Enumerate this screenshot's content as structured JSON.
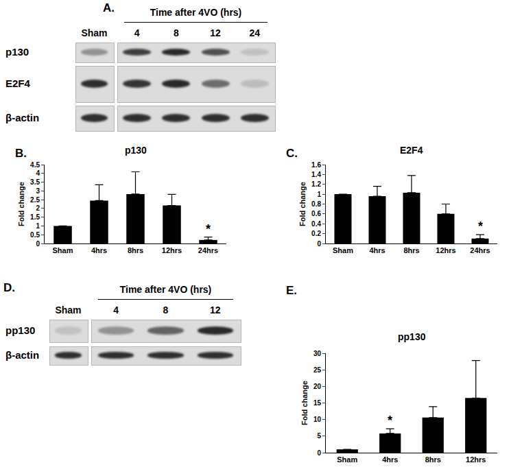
{
  "blots": [
    {
      "panel": "A.",
      "header": "Time after 4VO (hrs)",
      "lanes": [
        "Sham",
        "4",
        "8",
        "12",
        "24"
      ],
      "rows": [
        "p130",
        "E2F4",
        "β-actin"
      ]
    },
    {
      "panel": "D.",
      "header": "Time after 4VO (hrs)",
      "lanes": [
        "Sham",
        "4",
        "8",
        "12"
      ],
      "rows": [
        "pp130",
        "β-actin"
      ]
    }
  ],
  "chart_data": [
    {
      "panel": "B.",
      "type": "bar",
      "title": "p130",
      "ylabel": "Fold change",
      "categories": [
        "Sham",
        "4hrs",
        "8hrs",
        "12hrs",
        "24hrs"
      ],
      "values": [
        1,
        2.45,
        2.82,
        2.17,
        0.2
      ],
      "errors": [
        0,
        0.9,
        1.27,
        0.63,
        0.17
      ],
      "color": "#000000",
      "ylim": [
        0,
        4.5
      ],
      "yticks": [
        0,
        0.5,
        1,
        1.5,
        2,
        2.5,
        3,
        3.5,
        4,
        4.5
      ],
      "grid": false,
      "annotations": [
        {
          "category": "24hrs",
          "text": "*"
        }
      ]
    },
    {
      "panel": "C.",
      "type": "bar",
      "title": "E2F4",
      "ylabel": "Fold change",
      "categories": [
        "Sham",
        "4hrs",
        "8hrs",
        "12hrs",
        "24hrs"
      ],
      "values": [
        1,
        0.96,
        1.03,
        0.6,
        0.1
      ],
      "errors": [
        0,
        0.2,
        0.35,
        0.2,
        0.08
      ],
      "color": "#000000",
      "ylim": [
        0,
        1.6
      ],
      "yticks": [
        0,
        0.2,
        0.4,
        0.6,
        0.8,
        1,
        1.2,
        1.4,
        1.6
      ],
      "grid": false,
      "annotations": [
        {
          "category": "24hrs",
          "text": "*"
        }
      ]
    },
    {
      "panel": "E.",
      "type": "bar",
      "title": "pp130",
      "ylabel": "Fold change",
      "categories": [
        "Sham",
        "4hrs",
        "8hrs",
        "12hrs"
      ],
      "values": [
        1,
        5.8,
        10.6,
        16.5
      ],
      "errors": [
        0,
        1.4,
        3.3,
        11.3
      ],
      "color": "#000000",
      "ylim": [
        0,
        30
      ],
      "yticks": [
        0,
        5,
        10,
        15,
        20,
        25,
        30
      ],
      "grid": false,
      "annotations": [
        {
          "category": "4hrs",
          "text": "*"
        }
      ]
    }
  ]
}
